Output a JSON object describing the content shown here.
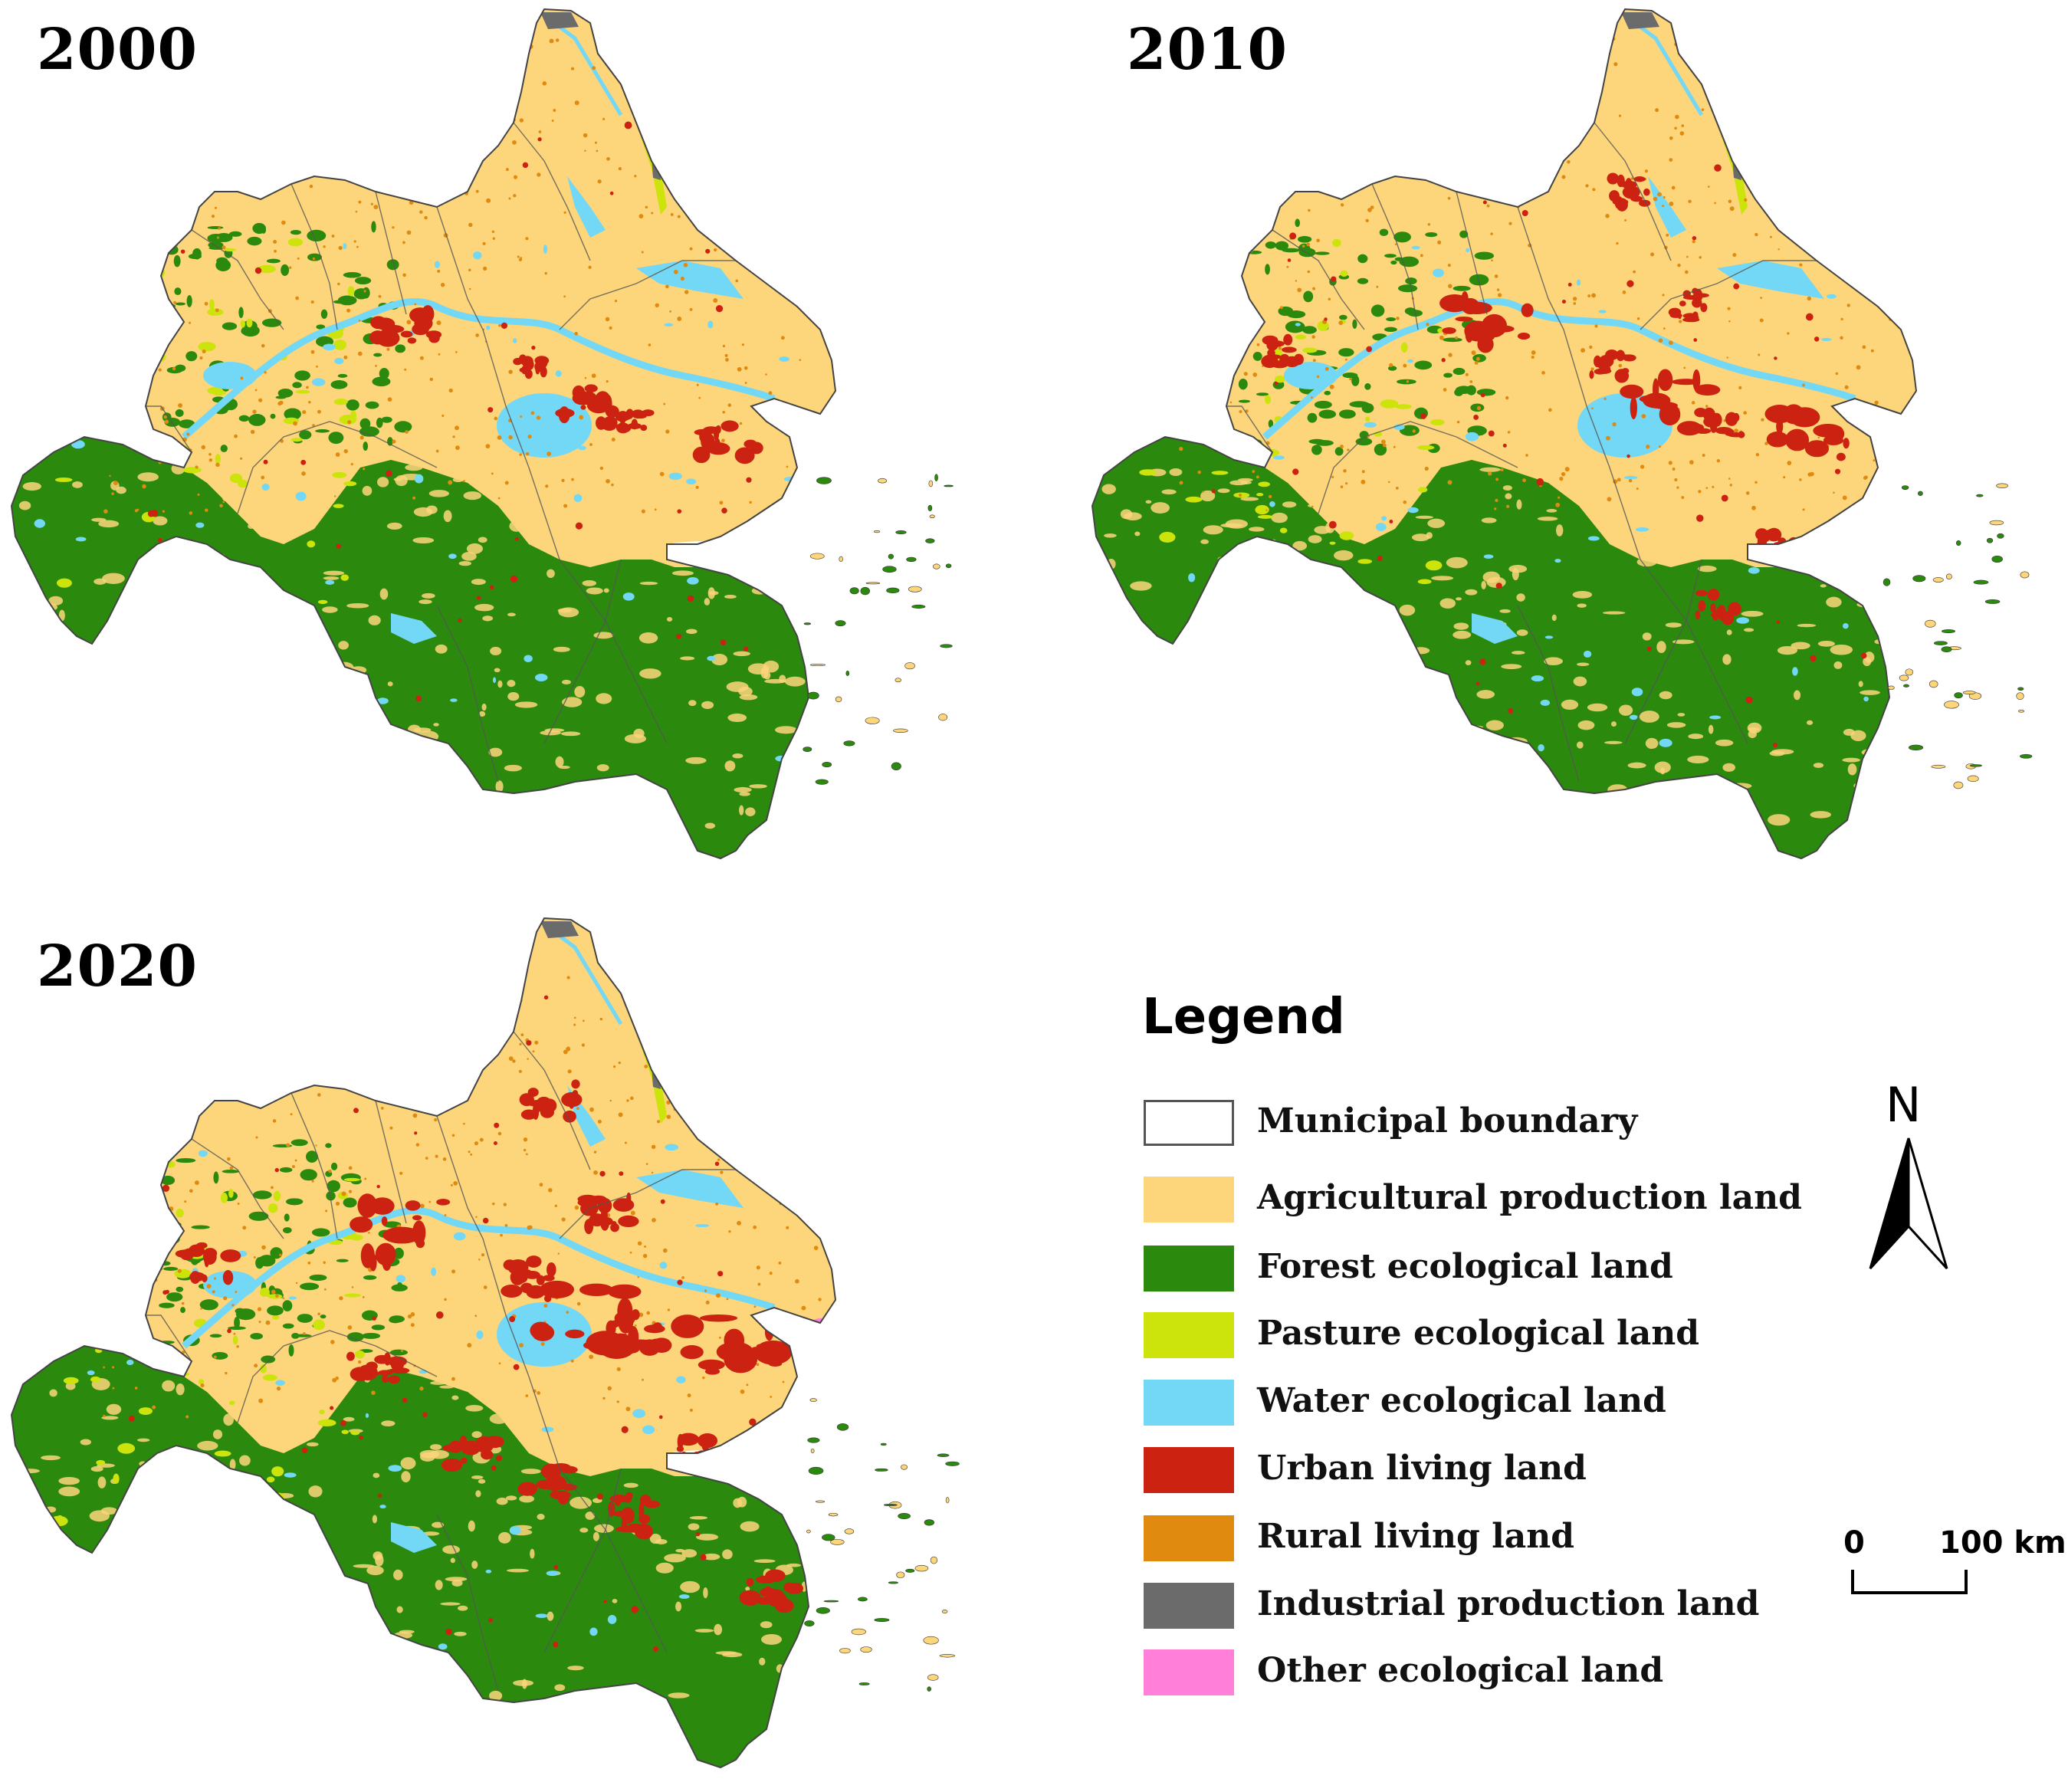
{
  "maps": [
    {
      "year": "2000"
    },
    {
      "year": "2010"
    },
    {
      "year": "2020"
    }
  ],
  "legend": {
    "title": "Legend",
    "items": [
      {
        "label": "Municipal boundary",
        "color": "#ffffff",
        "outline": "#555555"
      },
      {
        "label": "Agricultural production land",
        "color": "#fdd57a"
      },
      {
        "label": "Forest ecological land",
        "color": "#2b8a0e"
      },
      {
        "label": "Pasture ecological land",
        "color": "#cce30c"
      },
      {
        "label": "Water ecological land",
        "color": "#73d8f5"
      },
      {
        "label": "Urban living land",
        "color": "#cc2211"
      },
      {
        "label": "Rural living land",
        "color": "#e08a10"
      },
      {
        "label": "Industrial production land",
        "color": "#6b6b6b"
      },
      {
        "label": "Other ecological land",
        "color": "#ff7fd9"
      }
    ]
  },
  "north_arrow": {
    "letter": "N"
  },
  "scale_bar": {
    "start": "0",
    "end": "100 km"
  }
}
